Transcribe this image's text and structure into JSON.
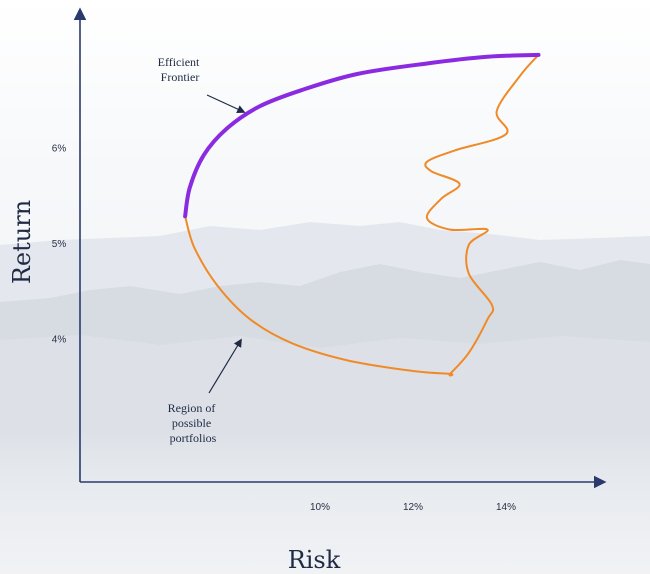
{
  "chart_data": {
    "type": "line",
    "title": "",
    "xlabel": "Risk",
    "ylabel": "Return",
    "x_ticks": [
      {
        "value": 10,
        "label": "10%"
      },
      {
        "value": 12,
        "label": "12%"
      },
      {
        "value": 14,
        "label": "14%"
      }
    ],
    "y_ticks": [
      {
        "value": 4,
        "label": "4%"
      },
      {
        "value": 5,
        "label": "5%"
      },
      {
        "value": 6,
        "label": "6%"
      }
    ],
    "xlim": [
      5.6,
      16.3
    ],
    "ylim": [
      2.6,
      7.4
    ],
    "grid": false,
    "legend": "none",
    "series": [
      {
        "name": "Efficient Frontier",
        "color": "#8a2be2",
        "points": [
          [
            7.1,
            5.28
          ],
          [
            7.2,
            5.58
          ],
          [
            7.5,
            5.92
          ],
          [
            8.0,
            6.2
          ],
          [
            8.7,
            6.43
          ],
          [
            9.6,
            6.6
          ],
          [
            10.8,
            6.77
          ],
          [
            12.3,
            6.88
          ],
          [
            13.6,
            6.95
          ],
          [
            14.7,
            6.97
          ]
        ]
      },
      {
        "name": "Region of possible portfolios",
        "color": "#f08a28",
        "points": [
          [
            7.1,
            5.28
          ],
          [
            7.3,
            4.95
          ],
          [
            7.8,
            4.55
          ],
          [
            8.5,
            4.2
          ],
          [
            9.4,
            3.95
          ],
          [
            10.6,
            3.77
          ],
          [
            12.0,
            3.66
          ],
          [
            12.8,
            3.63
          ],
          [
            12.8,
            3.63
          ],
          [
            13.2,
            3.85
          ],
          [
            13.6,
            4.2
          ],
          [
            13.7,
            4.35
          ],
          [
            13.2,
            4.68
          ],
          [
            13.2,
            4.98
          ],
          [
            13.6,
            5.14
          ],
          [
            12.8,
            5.14
          ],
          [
            12.3,
            5.26
          ],
          [
            12.6,
            5.46
          ],
          [
            13.0,
            5.62
          ],
          [
            12.4,
            5.75
          ],
          [
            12.3,
            5.85
          ],
          [
            12.9,
            5.97
          ],
          [
            14.0,
            6.14
          ],
          [
            13.8,
            6.38
          ],
          [
            14.3,
            6.75
          ],
          [
            14.7,
            6.97
          ]
        ]
      }
    ],
    "annotations": [
      {
        "text": [
          "Efficient",
          "Frontier"
        ],
        "target": [
          8.0,
          6.39
        ]
      },
      {
        "text": [
          "Region of",
          "possible",
          "portfolios"
        ],
        "target": [
          8.3,
          4.36
        ]
      }
    ]
  },
  "colors": {
    "axis": "#2a3a6e",
    "frontier": "#8a2be2",
    "region": "#f08a28",
    "text": "#1f2a44"
  }
}
